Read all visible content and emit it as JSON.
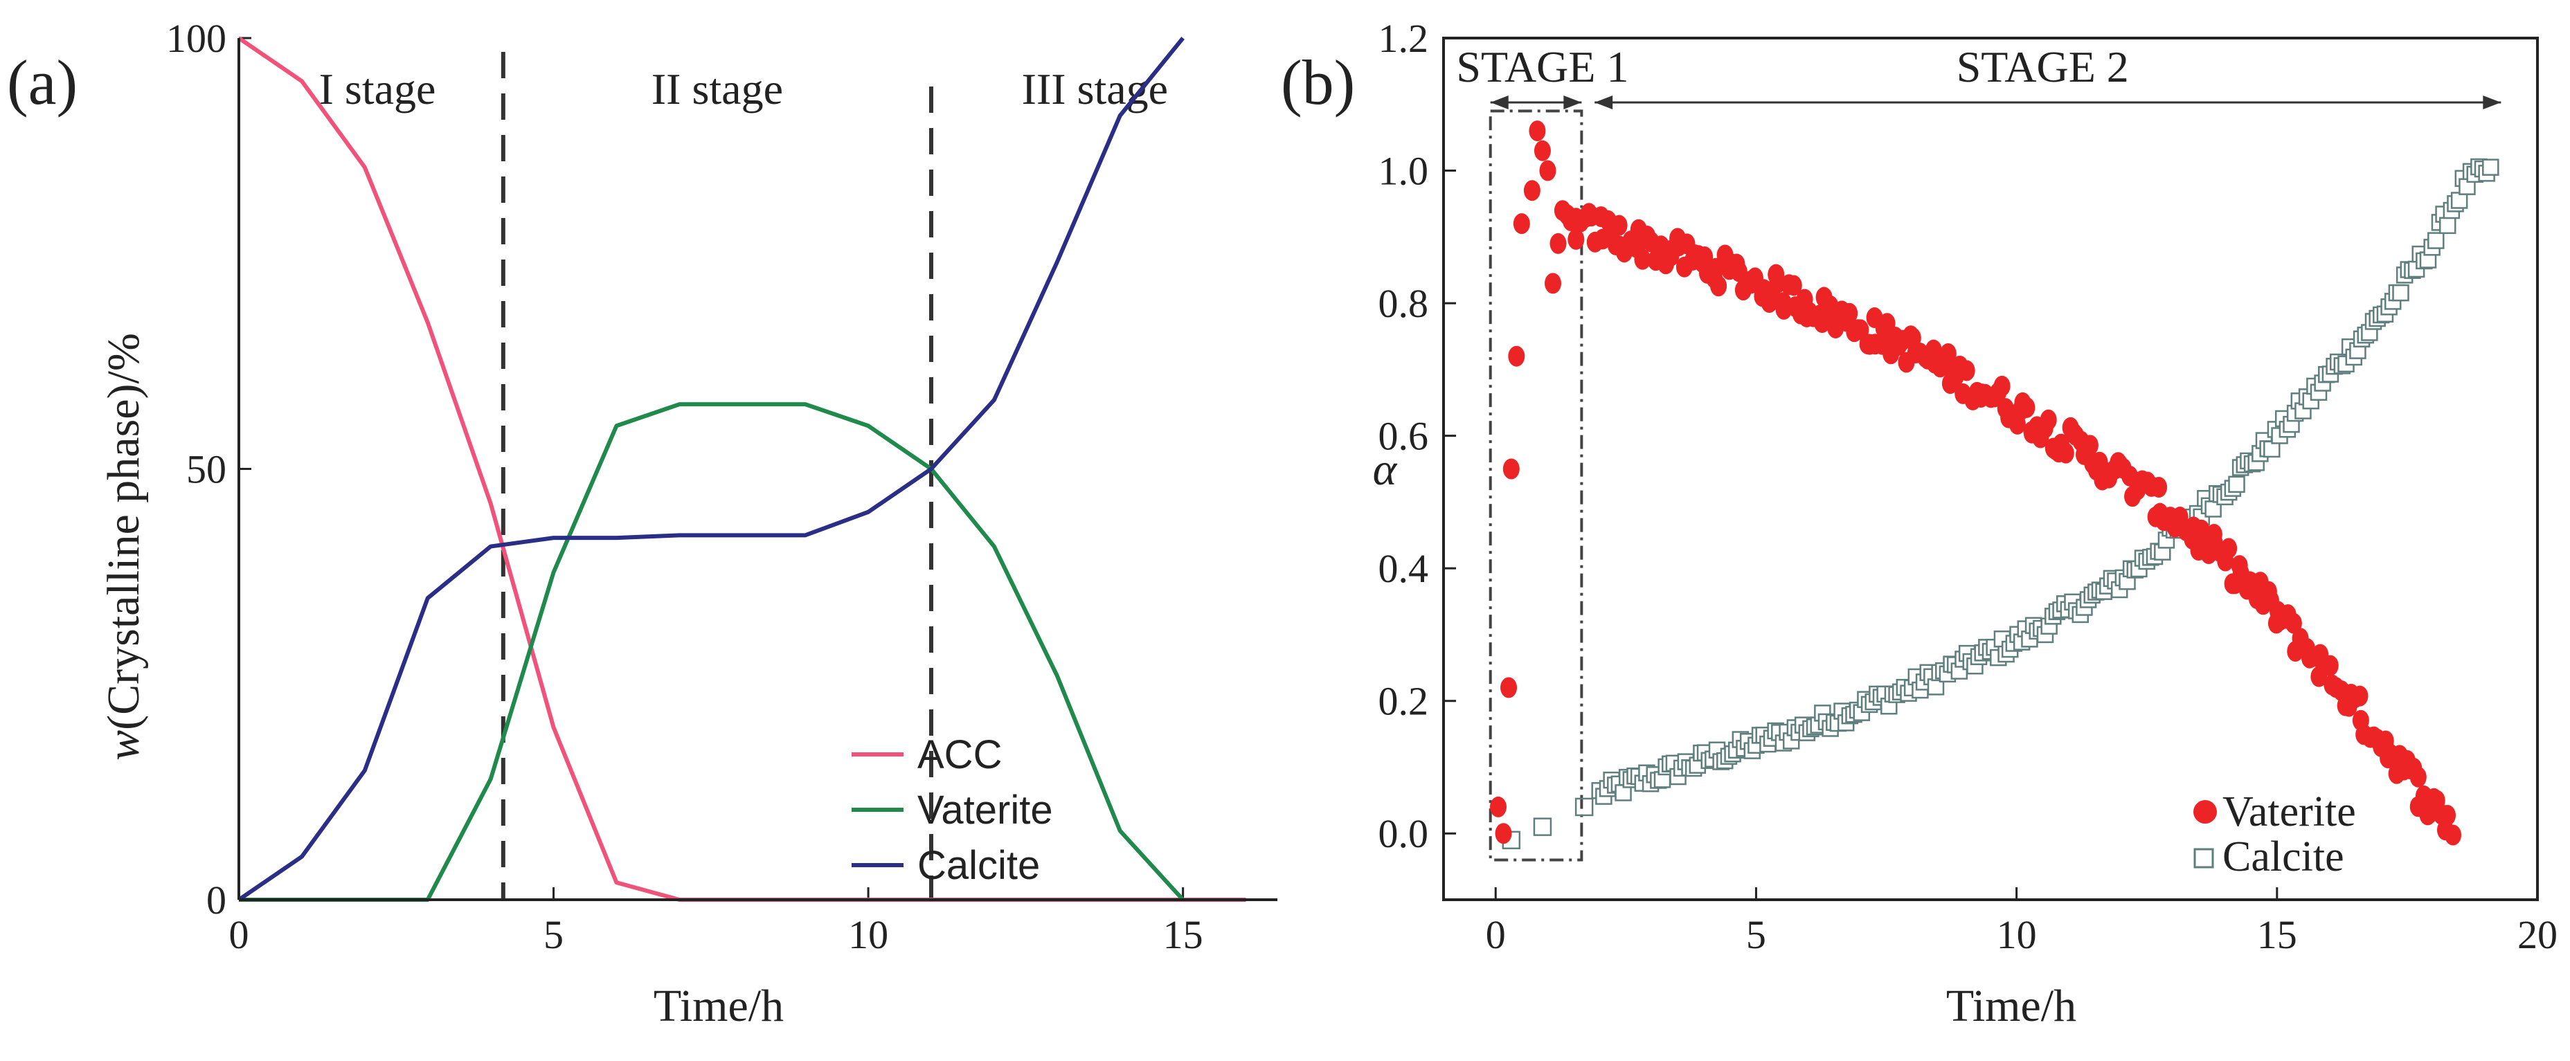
{
  "colors": {
    "acc": "#f0527a",
    "vaterite_a": "#1f8a4c",
    "calcite_a": "#2a2e86",
    "vaterite_b": "#ec2426",
    "calcite_b_edge": "#5f7f7f",
    "axis": "#222222"
  },
  "chart_data": [
    {
      "panel": "(a)",
      "type": "line",
      "title": "",
      "xlabel": "Time/h",
      "ylabel_italic": "w",
      "ylabel_rest": "(Crystalline phase)/%",
      "xlim": [
        0,
        16.5
      ],
      "ylim": [
        0,
        100
      ],
      "xticks": [
        0,
        5,
        10,
        15
      ],
      "yticks": [
        0,
        50,
        100
      ],
      "grid": false,
      "stage_lines": [
        4.2,
        11
      ],
      "stages": [
        {
          "label": "I stage",
          "x": 2.2
        },
        {
          "label": "II stage",
          "x": 7.6
        },
        {
          "label": "III stage",
          "x": 13.6
        }
      ],
      "legend_position": "lower-right",
      "series": [
        {
          "name": "ACC",
          "color_key": "acc",
          "x": [
            0,
            1,
            2,
            3,
            4,
            5,
            6,
            7,
            16
          ],
          "y": [
            100,
            95,
            85,
            67,
            46,
            20,
            2,
            0,
            0
          ]
        },
        {
          "name": "Vaterite",
          "color_key": "vaterite_a",
          "x": [
            0,
            3,
            4,
            5,
            6,
            7,
            8,
            9,
            10,
            11,
            12,
            13,
            14,
            15
          ],
          "y": [
            0,
            0,
            14,
            38,
            55,
            57.5,
            57.5,
            57.5,
            55,
            50,
            41,
            26,
            8,
            0
          ]
        },
        {
          "name": "Calcite",
          "color_key": "calcite_a",
          "x": [
            0,
            1,
            2,
            3,
            4,
            5,
            6,
            7,
            8,
            9,
            10,
            11,
            12,
            13,
            14,
            15
          ],
          "y": [
            0,
            5,
            15,
            35,
            41,
            42,
            42,
            42.3,
            42.3,
            42.3,
            45,
            50,
            58,
            74,
            91,
            100
          ]
        }
      ]
    },
    {
      "panel": "(b)",
      "type": "scatter",
      "title": "",
      "xlabel": "Time/h",
      "ylabel": "α",
      "xlim": [
        -1,
        20
      ],
      "ylim": [
        -0.1,
        1.2
      ],
      "xticks": [
        0,
        5,
        10,
        15,
        20
      ],
      "yticks": [
        0.0,
        0.2,
        0.4,
        0.6,
        0.8,
        1.0,
        1.2
      ],
      "ytick_labels": [
        "0.0",
        "0.2",
        "0.4",
        "0.6",
        "0.8",
        "1.0",
        "1.2"
      ],
      "grid": false,
      "stage_labels": [
        {
          "label": "STAGE 1",
          "x": 0.9
        },
        {
          "label": "STAGE 2",
          "x": 10.5
        }
      ],
      "stage_arrows": [
        [
          -0.1,
          1.65
        ],
        [
          1.9,
          19.3
        ]
      ],
      "stage1_box": {
        "x": [
          -0.1,
          1.65
        ],
        "y": [
          -0.04,
          1.09
        ]
      },
      "legend_position": "lower-right",
      "series": [
        {
          "name": "Vaterite",
          "marker": "filled-circle",
          "color_key": "vaterite_b",
          "stage1_points": [
            [
              0.05,
              0.04
            ],
            [
              0.15,
              0.0
            ],
            [
              0.25,
              0.22
            ],
            [
              0.3,
              0.55
            ],
            [
              0.4,
              0.72
            ],
            [
              0.5,
              0.92
            ],
            [
              0.7,
              0.97
            ],
            [
              0.8,
              1.06
            ],
            [
              0.9,
              1.03
            ],
            [
              1.0,
              1.0
            ],
            [
              1.1,
              0.83
            ],
            [
              1.2,
              0.89
            ]
          ],
          "trend_x": [
            1.3,
            2,
            4,
            6,
            8,
            10,
            12,
            13,
            14,
            15,
            16,
            17,
            18,
            18.4
          ],
          "trend_y": [
            0.92,
            0.91,
            0.86,
            0.8,
            0.73,
            0.64,
            0.54,
            0.48,
            0.41,
            0.33,
            0.24,
            0.14,
            0.04,
            0.01
          ]
        },
        {
          "name": "Calcite",
          "marker": "open-square",
          "color_key": "calcite_b_edge",
          "stage1_points": [
            [
              0.3,
              -0.01
            ],
            [
              0.9,
              0.01
            ],
            [
              1.7,
              0.04
            ]
          ],
          "trend_x": [
            2,
            4,
            6,
            8,
            10,
            12,
            13,
            14,
            15,
            16,
            17,
            18,
            18.6,
            19.1
          ],
          "trend_y": [
            0.06,
            0.11,
            0.16,
            0.22,
            0.29,
            0.38,
            0.45,
            0.52,
            0.6,
            0.69,
            0.78,
            0.89,
            0.98,
            1.0
          ]
        }
      ]
    }
  ]
}
